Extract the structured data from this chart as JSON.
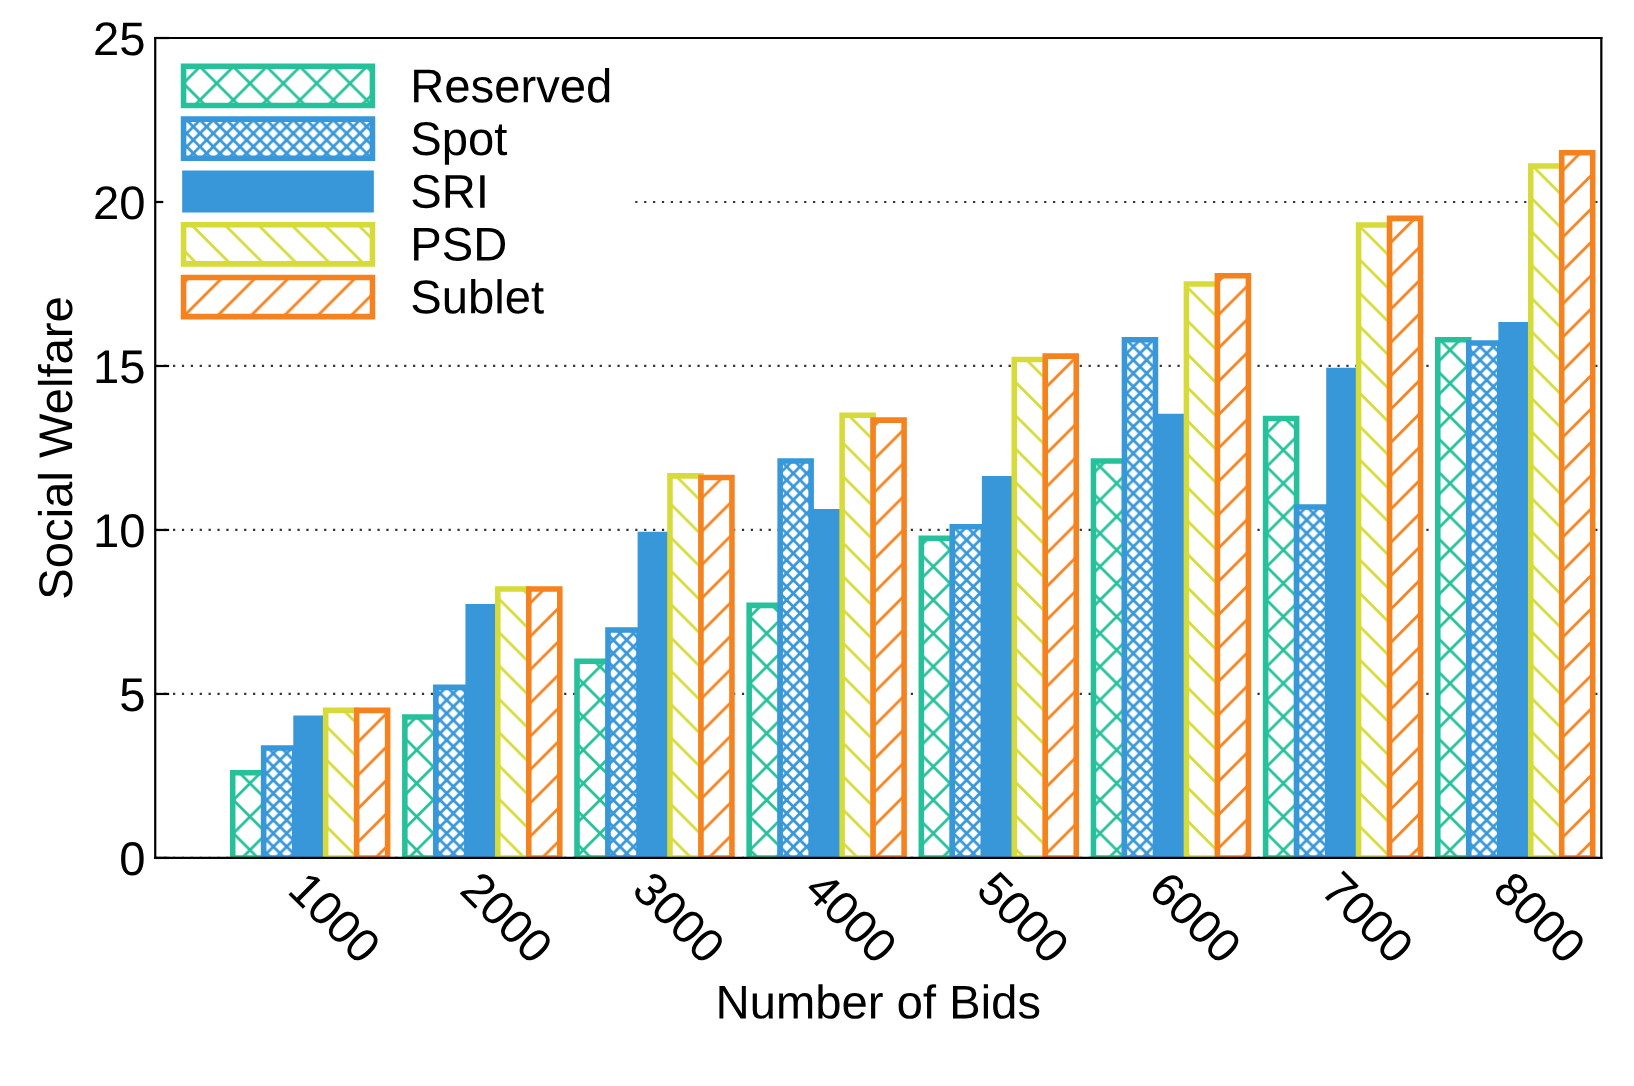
{
  "chart_data": {
    "type": "bar",
    "xlabel": "Number of Bids",
    "ylabel": "Social Welfare",
    "categories": [
      "1000",
      "2000",
      "3000",
      "4000",
      "5000",
      "6000",
      "7000",
      "8000"
    ],
    "series": [
      {
        "name": "Reserved",
        "color": "#26c09a",
        "values": [
          2.6,
          4.3,
          6.0,
          7.7,
          9.75,
          12.1,
          13.4,
          15.8
        ]
      },
      {
        "name": "Spot",
        "color": "#3797d9",
        "values": [
          3.35,
          5.2,
          6.95,
          12.1,
          10.1,
          15.8,
          10.7,
          15.7
        ]
      },
      {
        "name": "SRI",
        "color": "#3797d9",
        "values": [
          4.3,
          7.7,
          9.9,
          10.6,
          11.6,
          13.5,
          14.9,
          16.3
        ]
      },
      {
        "name": "PSD",
        "color": "#d6db3a",
        "values": [
          4.5,
          8.2,
          11.65,
          13.5,
          15.2,
          17.5,
          19.3,
          21.1
        ]
      },
      {
        "name": "Sublet",
        "color": "#f5821f",
        "values": [
          4.5,
          8.2,
          11.6,
          13.35,
          15.3,
          17.75,
          19.5,
          21.5
        ]
      }
    ],
    "ylim": [
      0,
      25
    ],
    "yticks": [
      0,
      5,
      10,
      15,
      20,
      25
    ],
    "grid": "y",
    "legend": "top left"
  }
}
